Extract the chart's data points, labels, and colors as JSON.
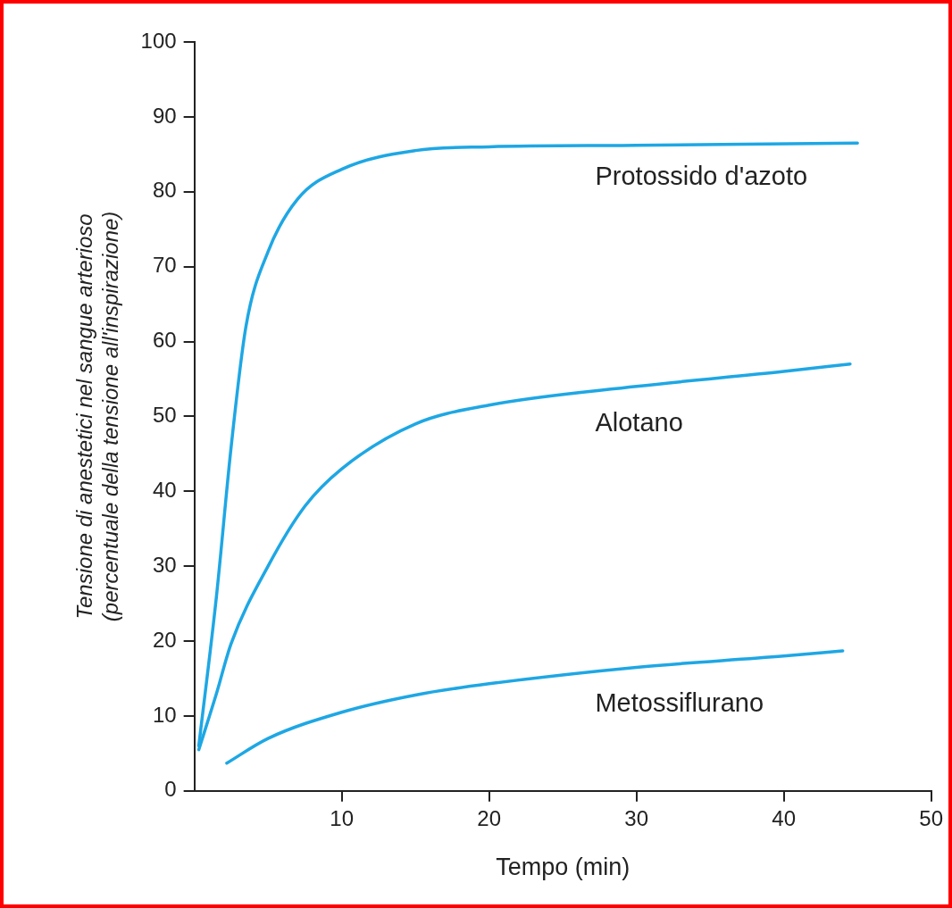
{
  "chart_data": {
    "type": "line",
    "xlabel": "Tempo (min)",
    "ylabel": "Tensione di anestetici nel sangue arterioso\n(percentuale della tensione all'inspirazione)",
    "xlim": [
      0,
      50
    ],
    "xticks": [
      10,
      20,
      30,
      40,
      50
    ],
    "ylim": [
      0,
      100
    ],
    "yticks": [
      0,
      10,
      20,
      30,
      40,
      50,
      60,
      70,
      80,
      90,
      100
    ],
    "grid": false,
    "legend": false,
    "marker": "none",
    "line_style": "solid",
    "series": [
      {
        "name": "Protossido d'azoto",
        "color": "#1ea7e4",
        "x": [
          0.3,
          1.5,
          2.5,
          3.5,
          5,
          7,
          10,
          15,
          20,
          30,
          45
        ],
        "values": [
          6,
          26,
          46,
          62,
          72,
          79,
          83,
          85.5,
          86,
          86.2,
          86.5
        ]
      },
      {
        "name": "Alotano",
        "color": "#1ea7e4",
        "x": [
          0.3,
          1.5,
          2.5,
          5,
          7.5,
          10,
          15,
          20,
          30,
          40,
          44.5
        ],
        "values": [
          5.5,
          13,
          19.7,
          30,
          38,
          43,
          49,
          51.5,
          54,
          56,
          57
        ]
      },
      {
        "name": "Metossiflurano",
        "color": "#1ea7e4",
        "x": [
          2.2,
          5,
          10,
          15,
          20,
          30,
          40,
          44
        ],
        "values": [
          3.7,
          7,
          10.5,
          12.8,
          14.3,
          16.5,
          18,
          18.7
        ]
      }
    ]
  }
}
